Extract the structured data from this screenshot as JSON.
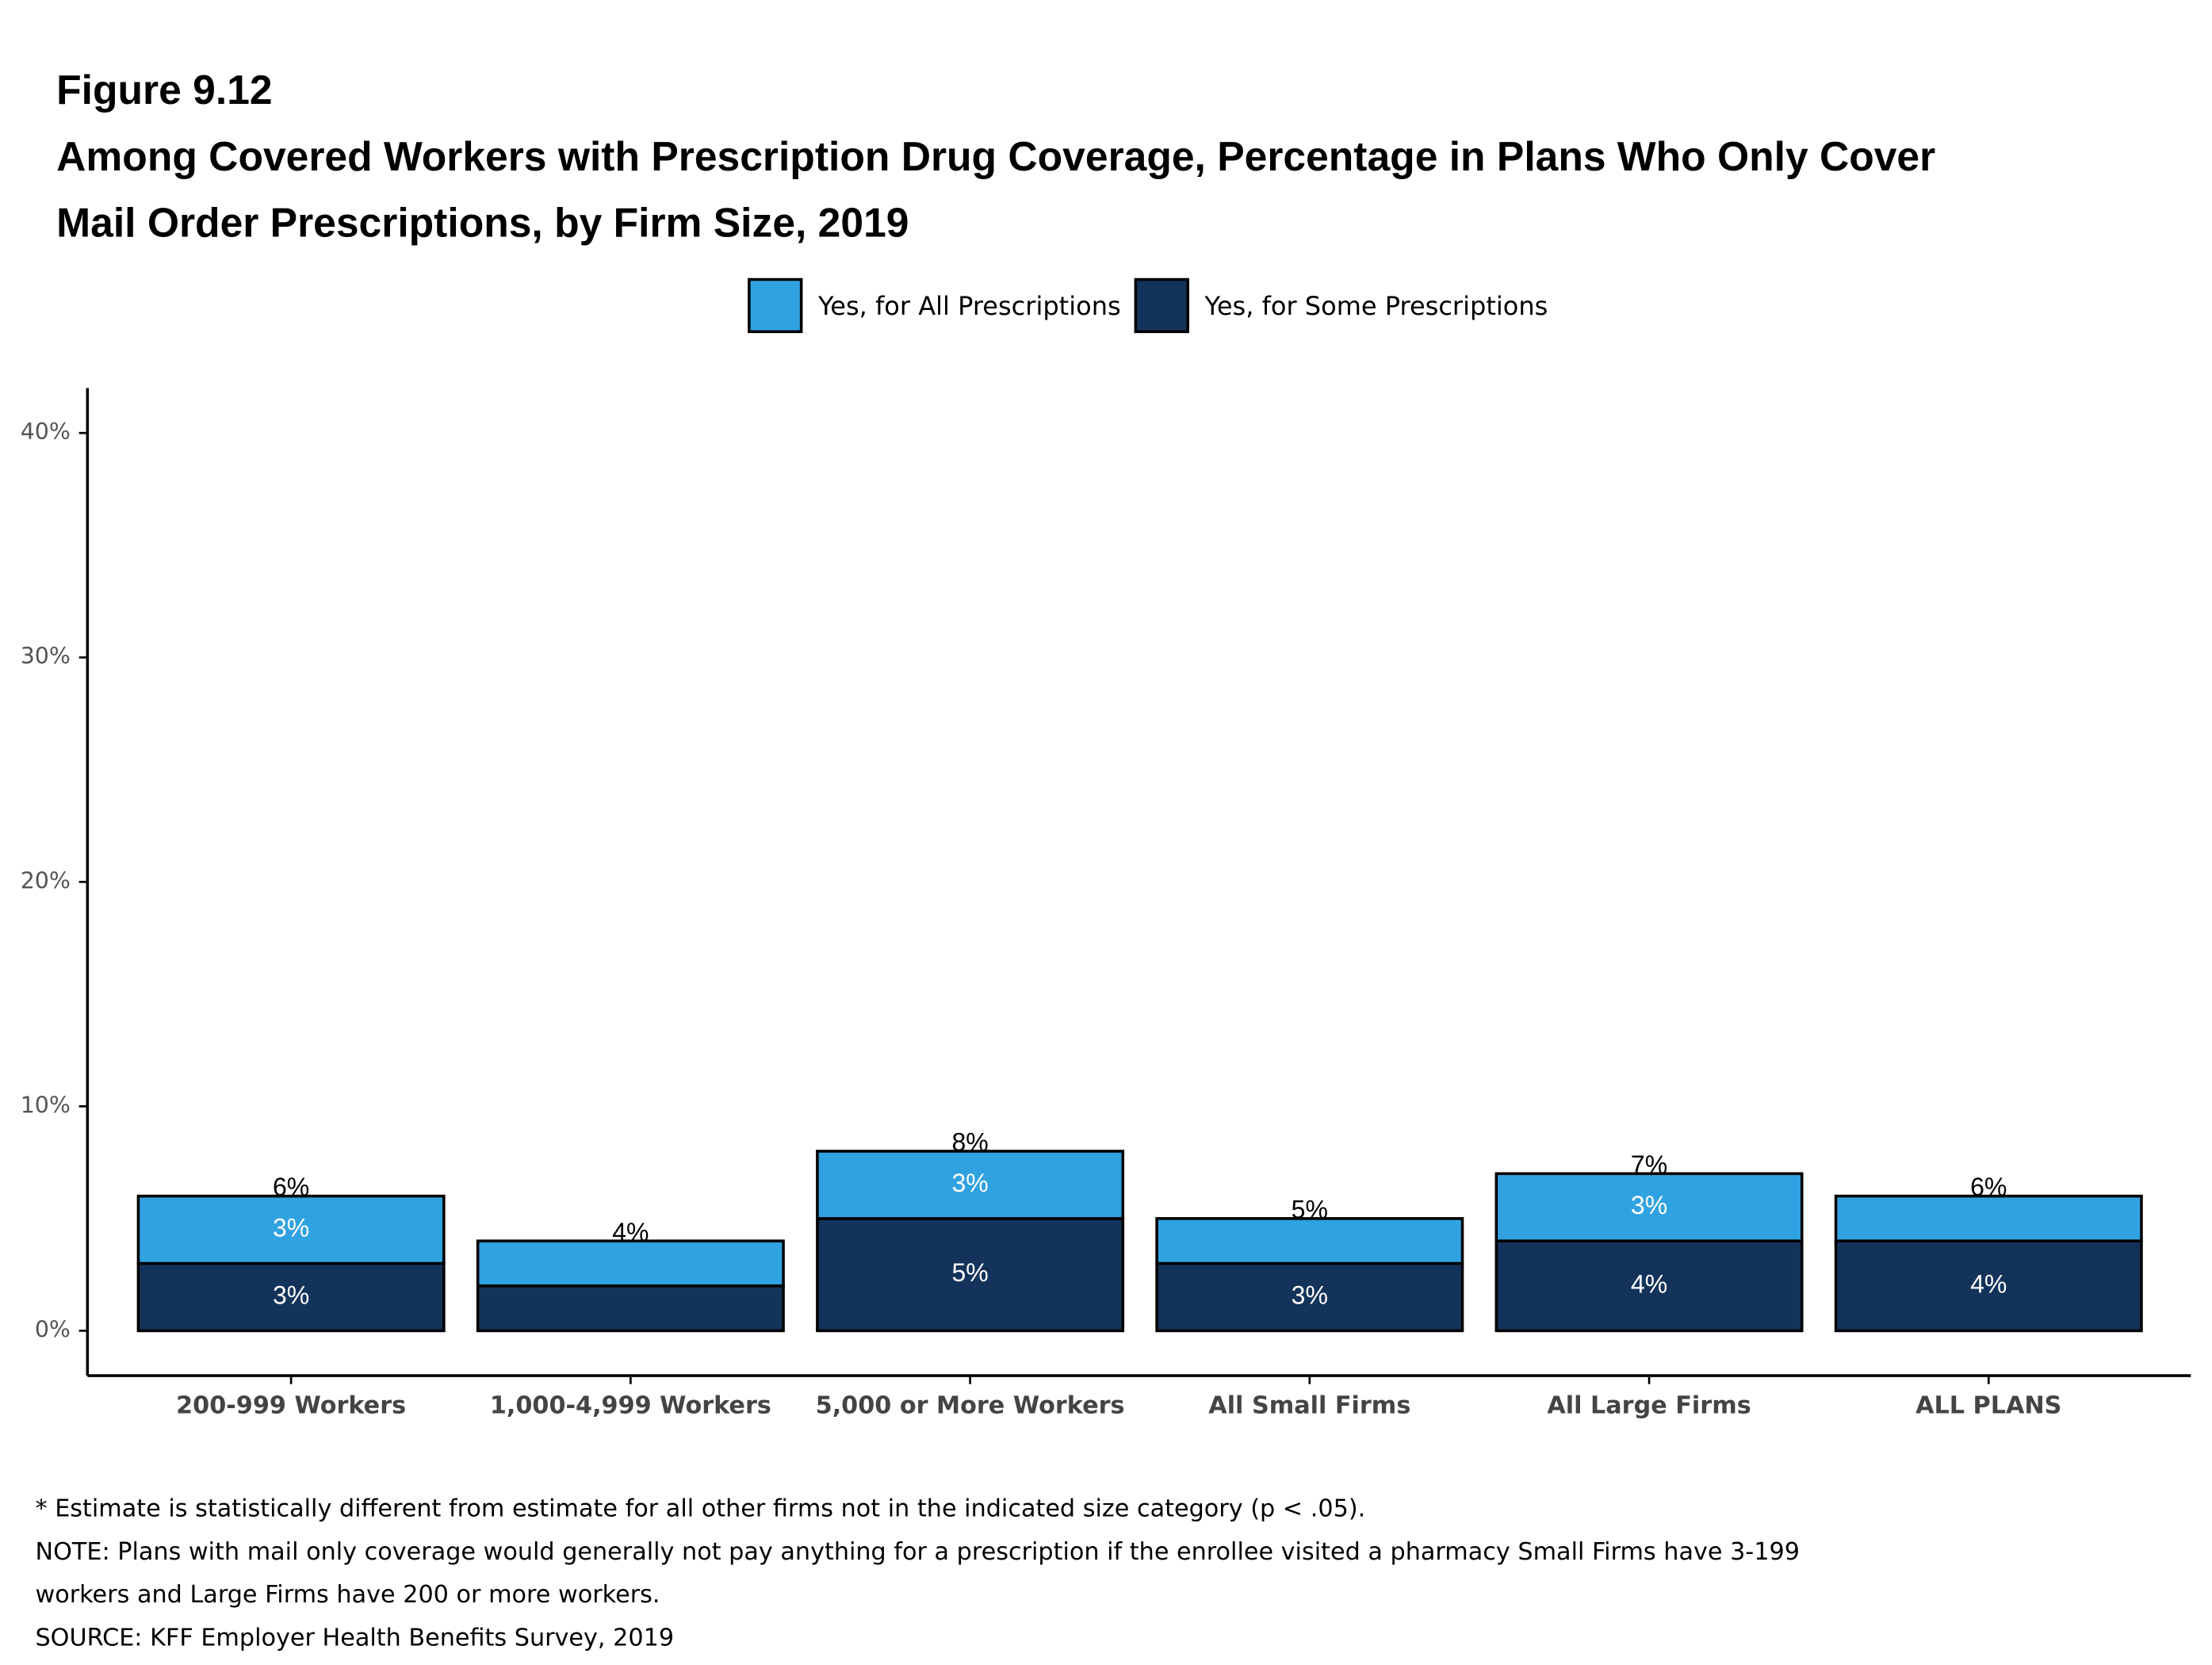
{
  "chart_data": {
    "type": "stacked_bar",
    "figure_label": "Figure 9.12",
    "title": [
      "Among Covered Workers with Prescription Drug Coverage, Percentage in Plans Who Only Cover",
      "Mail Order Prescriptions, by Firm Size, 2019"
    ],
    "categories": [
      "200-999 Workers",
      "1,000-4,999 Workers",
      "5,000 or More Workers",
      "All Small Firms",
      "All Large Firms",
      "ALL PLANS"
    ],
    "series": [
      {
        "name": "Yes, for All Prescriptions",
        "color": "#31a2e1",
        "values": [
          3,
          2,
          3,
          2,
          3,
          2
        ],
        "value_labels": [
          "3%",
          null,
          "3%",
          null,
          "3%",
          null
        ]
      },
      {
        "name": "Yes, for Some Prescriptions",
        "color": "#14335a",
        "values": [
          3,
          2,
          5,
          3,
          4,
          4
        ],
        "value_labels": [
          "3%",
          null,
          "5%",
          "3%",
          "4%",
          "4%"
        ]
      }
    ],
    "totals": {
      "values": [
        6,
        4,
        8,
        5,
        7,
        6
      ],
      "value_labels": [
        "6%",
        "4%",
        "8%",
        "5%",
        "7%",
        "6%"
      ]
    },
    "ylim": [
      -2,
      42
    ],
    "yticks": [
      {
        "value": 0,
        "label": "0%"
      },
      {
        "value": 10,
        "label": "10%"
      },
      {
        "value": 20,
        "label": "20%"
      },
      {
        "value": 30,
        "label": "30%"
      },
      {
        "value": 40,
        "label": "40%"
      }
    ],
    "grid": false,
    "legend": "top",
    "notes": [
      "* Estimate is statistically different from estimate for all other firms not in the indicated size category (p < .05).",
      "NOTE: Plans with mail only coverage would generally not pay anything for a prescription if the enrollee visited a pharmacy Small Firms have 3-199",
      "workers and Large Firms have 200 or more workers.",
      "SOURCE: KFF Employer Health Benefits Survey, 2019"
    ]
  }
}
